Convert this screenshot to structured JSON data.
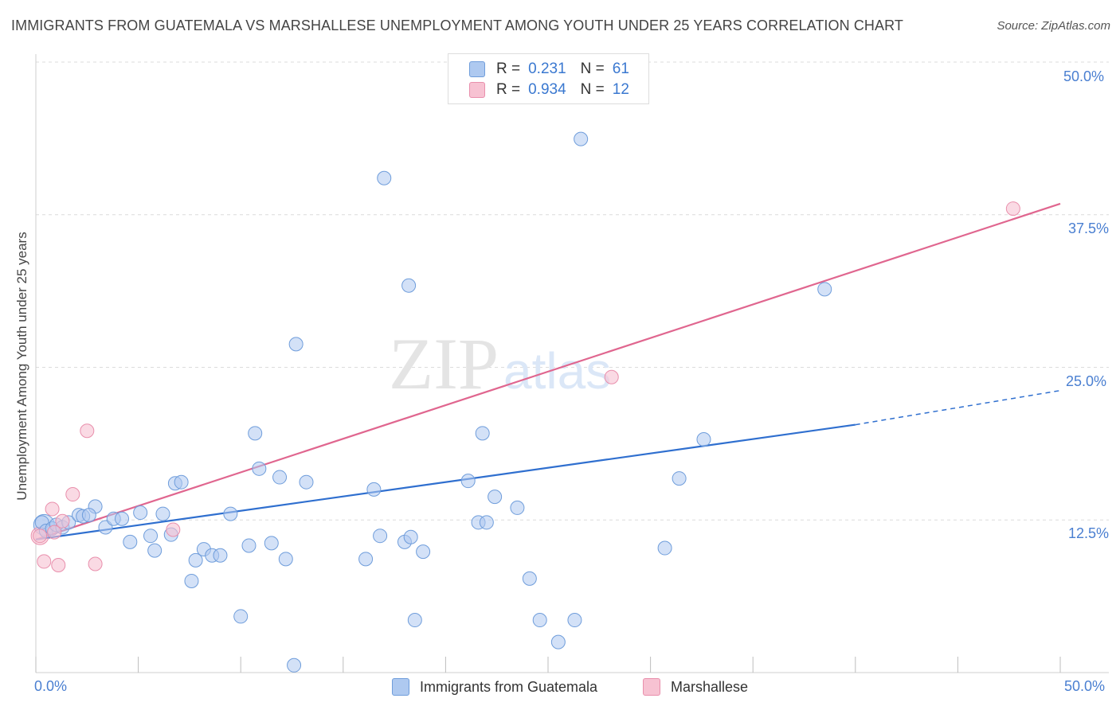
{
  "title": "IMMIGRANTS FROM GUATEMALA VS MARSHALLESE UNEMPLOYMENT AMONG YOUTH UNDER 25 YEARS CORRELATION CHART",
  "source": "Source: ZipAtlas.com",
  "watermark": {
    "zip": "ZIP",
    "atlas": "atlas"
  },
  "legend": {
    "r_label": "R =",
    "n_label": "N =",
    "guatemala": {
      "r": "0.231",
      "n": "61"
    },
    "marshallese": {
      "r": "0.934",
      "n": "12"
    }
  },
  "colors": {
    "guatemala_fill": "#aec9f0",
    "guatemala_stroke": "#6f9ddb",
    "guatemala_line": "#2f6fcf",
    "marshallese_fill": "#f7c2d2",
    "marshallese_stroke": "#e98fac",
    "marshallese_line": "#e0668f",
    "axis_text": "#4a7fd1"
  },
  "chart_data": {
    "type": "scatter",
    "title": "IMMIGRANTS FROM GUATEMALA VS MARSHALLESE UNEMPLOYMENT AMONG YOUTH UNDER 25 YEARS CORRELATION CHART",
    "xlabel": "",
    "ylabel": "Unemployment Among Youth under 25 years",
    "xlim": [
      0,
      50
    ],
    "ylim": [
      0,
      50
    ],
    "x_tick_labels": [
      "0.0%",
      "50.0%"
    ],
    "y_tick_labels": [
      "12.5%",
      "25.0%",
      "37.5%",
      "50.0%"
    ],
    "y_ticks": [
      12.5,
      25.0,
      37.5,
      50.0
    ],
    "grid": "horizontal dashed",
    "legend_position": "top-center",
    "series": [
      {
        "name": "Immigrants from Guatemala",
        "points": [
          [
            0.3,
            12.3
          ],
          [
            0.5,
            11.6
          ],
          [
            0.8,
            11.8
          ],
          [
            1.0,
            12.1
          ],
          [
            1.3,
            11.9
          ],
          [
            1.6,
            12.3
          ],
          [
            2.1,
            12.9
          ],
          [
            2.3,
            12.8
          ],
          [
            2.9,
            13.6
          ],
          [
            2.6,
            12.9
          ],
          [
            3.4,
            11.9
          ],
          [
            3.8,
            12.6
          ],
          [
            4.2,
            12.6
          ],
          [
            4.6,
            10.7
          ],
          [
            5.1,
            13.1
          ],
          [
            5.6,
            11.2
          ],
          [
            5.8,
            10.0
          ],
          [
            6.2,
            13.0
          ],
          [
            6.6,
            11.3
          ],
          [
            6.8,
            15.5
          ],
          [
            7.1,
            15.6
          ],
          [
            7.6,
            7.5
          ],
          [
            7.8,
            9.2
          ],
          [
            8.2,
            10.1
          ],
          [
            8.6,
            9.6
          ],
          [
            9.0,
            9.6
          ],
          [
            9.5,
            13.0
          ],
          [
            10.0,
            4.6
          ],
          [
            10.4,
            10.4
          ],
          [
            10.7,
            19.6
          ],
          [
            10.9,
            16.7
          ],
          [
            11.5,
            10.6
          ],
          [
            11.9,
            16.0
          ],
          [
            12.2,
            9.3
          ],
          [
            12.6,
            0.6
          ],
          [
            12.7,
            26.9
          ],
          [
            13.2,
            15.6
          ],
          [
            16.1,
            9.3
          ],
          [
            16.5,
            15.0
          ],
          [
            16.8,
            11.2
          ],
          [
            17.0,
            40.5
          ],
          [
            18.0,
            10.7
          ],
          [
            18.3,
            11.1
          ],
          [
            18.2,
            31.7
          ],
          [
            18.5,
            4.3
          ],
          [
            18.9,
            9.9
          ],
          [
            21.1,
            15.7
          ],
          [
            21.6,
            12.3
          ],
          [
            22.0,
            12.3
          ],
          [
            21.8,
            19.6
          ],
          [
            22.4,
            14.4
          ],
          [
            23.5,
            13.5
          ],
          [
            24.1,
            7.7
          ],
          [
            24.6,
            4.3
          ],
          [
            25.5,
            2.5
          ],
          [
            26.3,
            4.3
          ],
          [
            26.6,
            43.7
          ],
          [
            30.7,
            10.2
          ],
          [
            31.4,
            15.9
          ],
          [
            32.6,
            19.1
          ],
          [
            38.5,
            31.4
          ]
        ]
      },
      {
        "name": "Marshallese",
        "points": [
          [
            0.2,
            11.2
          ],
          [
            0.4,
            9.1
          ],
          [
            0.8,
            13.4
          ],
          [
            0.9,
            11.5
          ],
          [
            1.1,
            8.8
          ],
          [
            1.3,
            12.4
          ],
          [
            1.8,
            14.6
          ],
          [
            2.5,
            19.8
          ],
          [
            2.9,
            8.9
          ],
          [
            6.7,
            11.7
          ],
          [
            28.1,
            24.2
          ],
          [
            47.7,
            38.0
          ]
        ]
      }
    ],
    "trend_lines": [
      {
        "series": "Immigrants from Guatemala",
        "from": [
          0,
          10.9
        ],
        "to": [
          40,
          20.3
        ],
        "dashed_to": [
          50,
          23.1
        ]
      },
      {
        "series": "Marshallese",
        "from": [
          0,
          10.9
        ],
        "to": [
          50,
          38.4
        ]
      }
    ]
  }
}
